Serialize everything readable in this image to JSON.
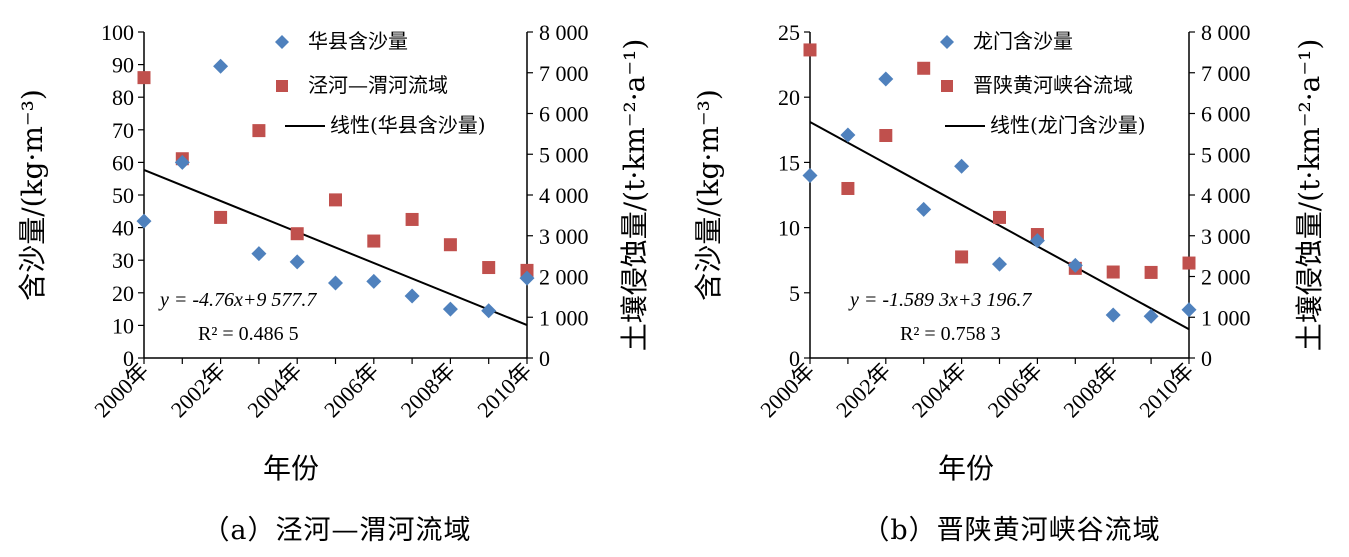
{
  "colors": {
    "sediment": "#4f81bd",
    "erosion": "#c0504d",
    "trend": "#000000",
    "axis": "#000000"
  },
  "panels": [
    {
      "caption": "（a）泾河—渭河流域",
      "legend": [
        "华县含沙量",
        "泾河—渭河流域",
        "线性(华县含沙量)"
      ],
      "equation": "y = -4.76x+9 577.7",
      "r2": "R² = 0.486 5"
    },
    {
      "caption": "（b）晋陕黄河峡谷流域",
      "legend": [
        "龙门含沙量",
        "晋陕黄河峡谷流域",
        "线性(龙门含沙量)"
      ],
      "equation": "y = -1.589 3x+3 196.7",
      "r2": "R² = 0.758 3"
    }
  ],
  "chart_data": [
    {
      "type": "scatter",
      "xlabel": "年份",
      "ylabel": "含沙量/(kg·m⁻³)",
      "y2label": "土壤侵蚀量/(t·km⁻²·a⁻¹)",
      "x": [
        2000,
        2001,
        2002,
        2003,
        2004,
        2005,
        2006,
        2007,
        2008,
        2009,
        2010
      ],
      "x_ticks": [
        "2000年",
        "2002年",
        "2004年",
        "2006年",
        "2008年",
        "2010年"
      ],
      "x_tick_values": [
        2000,
        2002,
        2004,
        2006,
        2008,
        2010
      ],
      "ylim": [
        0,
        100
      ],
      "y_ticks": [
        "0",
        "10",
        "20",
        "30",
        "40",
        "50",
        "60",
        "70",
        "80",
        "90",
        "100"
      ],
      "y2lim": [
        0,
        8000
      ],
      "y2_ticks": [
        "0",
        "1 000",
        "2 000",
        "3 000",
        "4 000",
        "5 000",
        "6 000",
        "7 000",
        "8 000"
      ],
      "series": [
        {
          "name": "华县含沙量",
          "axis": "left",
          "marker": "diamond",
          "values": [
            42,
            60,
            89.5,
            32,
            29.5,
            23,
            23.5,
            19,
            15,
            14.5,
            24.5
          ]
        },
        {
          "name": "泾河—渭河流域",
          "axis": "right",
          "marker": "square",
          "values": [
            6880,
            4890,
            3450,
            5580,
            3050,
            3880,
            2870,
            3400,
            2780,
            2220,
            2150
          ]
        },
        {
          "name": "线性(华县含沙量)",
          "type": "line",
          "axis": "left",
          "slope": -4.76,
          "intercept": 9577.7
        }
      ]
    },
    {
      "type": "scatter",
      "xlabel": "年份",
      "ylabel": "含沙量/(kg·m⁻³)",
      "y2label": "土壤侵蚀量/(t·km⁻²·a⁻¹)",
      "x": [
        2000,
        2001,
        2002,
        2003,
        2004,
        2005,
        2006,
        2007,
        2008,
        2009,
        2010
      ],
      "x_ticks": [
        "2000年",
        "2002年",
        "2004年",
        "2006年",
        "2008年",
        "2010年"
      ],
      "x_tick_values": [
        2000,
        2002,
        2004,
        2006,
        2008,
        2010
      ],
      "ylim": [
        0,
        25
      ],
      "y_ticks": [
        "0",
        "5",
        "10",
        "15",
        "20",
        "25"
      ],
      "y2lim": [
        0,
        8000
      ],
      "y2_ticks": [
        "0",
        "1 000",
        "2 000",
        "3 000",
        "4 000",
        "5 000",
        "6 000",
        "7 000",
        "8 000"
      ],
      "series": [
        {
          "name": "龙门含沙量",
          "axis": "left",
          "marker": "diamond",
          "values": [
            14,
            17.1,
            21.4,
            11.4,
            14.7,
            7.2,
            9,
            7.1,
            3.3,
            3.2,
            3.7
          ]
        },
        {
          "name": "晋陕黄河峡谷流域",
          "axis": "right",
          "marker": "square",
          "values": [
            7560,
            4160,
            5460,
            7110,
            2480,
            3450,
            3030,
            2200,
            2110,
            2100,
            2330
          ]
        },
        {
          "name": "线性(龙门含沙量)",
          "type": "line",
          "axis": "left",
          "slope": -1.5893,
          "intercept": 3196.7
        }
      ]
    }
  ]
}
